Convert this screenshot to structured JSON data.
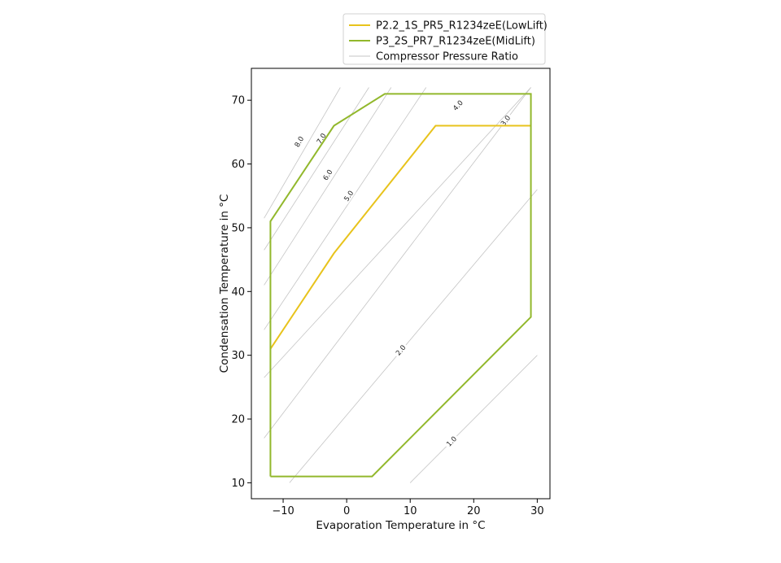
{
  "chart_data": {
    "type": "line",
    "title": "",
    "xlabel": "Evaporation Temperature in °C",
    "ylabel": "Condensation Temperature in °C",
    "xlim": [
      -15,
      32
    ],
    "ylim": [
      7.5,
      75
    ],
    "xticks": [
      -10,
      0,
      10,
      20,
      30
    ],
    "yticks": [
      10,
      20,
      30,
      40,
      50,
      60,
      70
    ],
    "grid": false,
    "legend_position": "top-center",
    "series": [
      {
        "name": "P2.2_1S_PR5_R1234zeE(LowLift)",
        "color": "#e8c31c",
        "points": [
          [
            -12,
            31
          ],
          [
            -2,
            46
          ],
          [
            14,
            66
          ],
          [
            29,
            66
          ]
        ]
      },
      {
        "name": "P3_2S_PR7_R1234zeE(MidLift)",
        "color": "#92b82c",
        "closed": true,
        "points": [
          [
            -12,
            11
          ],
          [
            4,
            11
          ],
          [
            29,
            36
          ],
          [
            29,
            71
          ],
          [
            6,
            71
          ],
          [
            -2,
            66
          ],
          [
            -12,
            51
          ],
          [
            -12,
            11
          ]
        ]
      }
    ],
    "contours": {
      "name": "Compressor Pressure Ratio",
      "color": "#c4c4c4",
      "lines": [
        {
          "label": "1.0",
          "x1": 10,
          "y1": 10,
          "x2": 30,
          "y2": 30,
          "label_x": 16.5,
          "label_y": 16.5
        },
        {
          "label": "2.0",
          "x1": -9,
          "y1": 10,
          "x2": 30,
          "y2": 56,
          "label_x": 8.5,
          "label_y": 30.8
        },
        {
          "label": "3.0",
          "x1": -13,
          "y1": 17,
          "x2": 29,
          "y2": 72,
          "label_x": 25,
          "label_y": 66.8
        },
        {
          "label": "4.0",
          "x1": -13,
          "y1": 26.5,
          "x2": 29,
          "y2": 72,
          "label_x": 17.5,
          "label_y": 69.2
        },
        {
          "label": "5.0",
          "x1": -13,
          "y1": 34,
          "x2": 12.5,
          "y2": 72,
          "label_x": 0.3,
          "label_y": 55
        },
        {
          "label": "6.0",
          "x1": -13,
          "y1": 41,
          "x2": 7,
          "y2": 72,
          "label_x": -3,
          "label_y": 58.3
        },
        {
          "label": "7.0",
          "x1": -13,
          "y1": 46.5,
          "x2": 3.5,
          "y2": 72,
          "label_x": -4,
          "label_y": 64
        },
        {
          "label": "8.0",
          "x1": -13,
          "y1": 51.5,
          "x2": -1,
          "y2": 72,
          "label_x": -7.5,
          "label_y": 63.5
        }
      ]
    }
  }
}
